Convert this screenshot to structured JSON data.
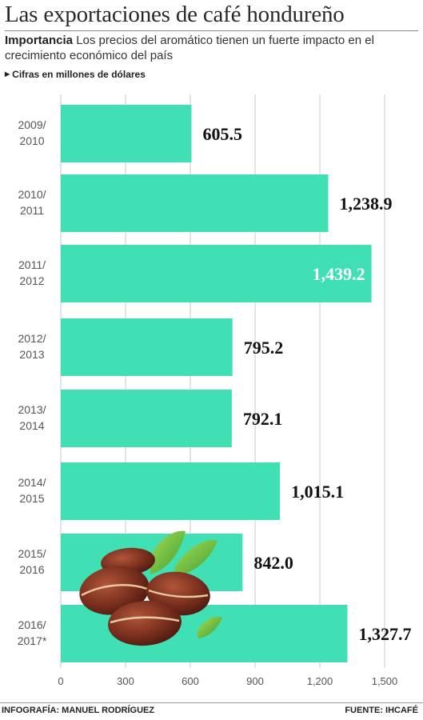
{
  "header": {
    "title": "Las exportaciones de café hondureño",
    "subtitle_bold": "Importancia",
    "subtitle_text": " Los precios del aromático tienen  un fuerte impacto en el crecimiento económico del país",
    "unit_note": "Cifras en millones de dólares"
  },
  "footer": {
    "credit": "INFOGRAFÍA: MANUEL RODRÍGUEZ",
    "source": "FUENTE: IHCAFÉ"
  },
  "colors": {
    "bar": "#40e0b4",
    "value_text": "#111111",
    "highlight_value_text": "#ffffff",
    "grid": "#c8c8c8"
  },
  "icons": [
    "coffee-beans-illustration"
  ],
  "chart_data": {
    "type": "bar",
    "orientation": "horizontal",
    "categories": [
      [
        "2009/",
        "2010"
      ],
      [
        "2010/",
        "2011"
      ],
      [
        "2011/",
        "2012"
      ],
      [
        "2012/",
        "2013"
      ],
      [
        "2013/",
        "2014"
      ],
      [
        "2014/",
        "2015"
      ],
      [
        "2015/",
        "2016"
      ],
      [
        "2016/",
        "2017*"
      ]
    ],
    "values": [
      605.5,
      1238.9,
      1439.2,
      795.2,
      792.1,
      1015.1,
      842.0,
      1327.7
    ],
    "value_labels": [
      "605.5",
      "1,238.9",
      "1,439.2",
      "795.2",
      "792.1",
      "1,015.1",
      "842.0",
      "1,327.7"
    ],
    "highlight_index": 2,
    "x_ticks": [
      0,
      300,
      600,
      900,
      1200,
      1500
    ],
    "x_tick_labels": [
      "0",
      "300",
      "600",
      "900",
      "1,200",
      "1,500"
    ],
    "xlim": [
      0,
      1500
    ],
    "grid": true
  }
}
